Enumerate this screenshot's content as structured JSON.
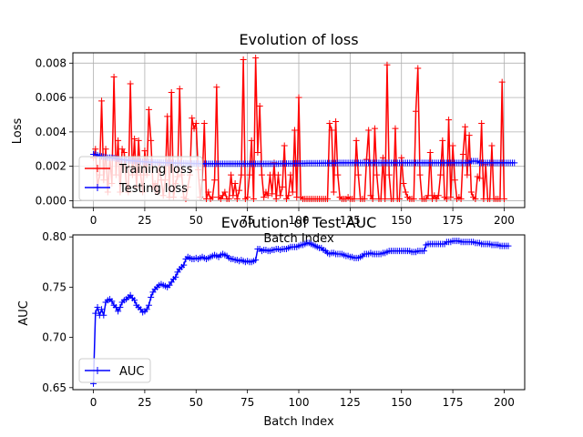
{
  "chart_data": [
    {
      "type": "line",
      "title": "Evolution of loss",
      "xlabel": "Batch Index",
      "ylabel": "Loss",
      "xlim": [
        -10,
        210
      ],
      "ylim": [
        -0.0004,
        0.0086
      ],
      "xticks": [
        0,
        25,
        50,
        75,
        100,
        125,
        150,
        175,
        200
      ],
      "yticks": [
        0.0,
        0.002,
        0.004,
        0.006,
        0.008
      ],
      "ytick_labels": [
        "0.000",
        "0.002",
        "0.004",
        "0.006",
        "0.008"
      ],
      "grid": true,
      "legend": "lower-left",
      "series": [
        {
          "name": "Training loss",
          "color": "#ff0000",
          "marker": "plus",
          "values": [
            0.0025,
            0.003,
            0.0008,
            0.0015,
            0.0058,
            0.0012,
            0.003,
            0.0005,
            0.0025,
            0.001,
            0.0072,
            0.0015,
            0.0035,
            0.0005,
            0.003,
            0.0028,
            0.001,
            0.0005,
            0.0068,
            0.0015,
            0.0036,
            0.0008,
            0.0035,
            0.0015,
            0.0005,
            0.0029,
            0.0015,
            0.0053,
            0.0035,
            0.0008,
            0.001,
            0.0005,
            0.0022,
            0.0012,
            0.0003,
            0.0012,
            0.0049,
            0.0002,
            0.0063,
            0.0002,
            0.001,
            0.0014,
            0.0065,
            0.0015,
            0.0002,
            0.0001,
            0.0008,
            0.0015,
            0.0048,
            0.0042,
            0.0045,
            0.0018,
            0.0002,
            0.0012,
            0.0045,
            0.0001,
            0.0005,
            0.0001,
            0.0002,
            0.0012,
            0.0066,
            0.0002,
            0.0001,
            0.0003,
            0.0005,
            0.0001,
            0.0001,
            0.0015,
            0.0003,
            0.001,
            0.0001,
            0.0006,
            0.0015,
            0.0082,
            0.0001,
            0.0002,
            0.0015,
            0.0035,
            0.0001,
            0.0083,
            0.0028,
            0.0055,
            0.0015,
            0.0002,
            0.0005,
            0.0003,
            0.0015,
            0.0004,
            0.0022,
            0.0001,
            0.0015,
            0.0003,
            0.0008,
            0.0032,
            0.0001,
            0.0003,
            0.0015,
            0.0005,
            0.0041,
            0.0002,
            0.006,
            0.0002,
            0.0001,
            0.0001,
            0.0001,
            0.0001,
            0.0001,
            0.0001,
            0.0001,
            0.0001,
            0.0001,
            0.0001,
            0.0001,
            0.0001,
            0.0001,
            0.0045,
            0.0041,
            0.0005,
            0.0046,
            0.0015,
            0.0002,
            0.0001,
            0.0001,
            0.0001,
            0.0002,
            0.0001,
            0.0001,
            0.0001,
            0.0035,
            0.0015,
            0.0001,
            0.0001,
            0.0001,
            0.0024,
            0.0041,
            0.0003,
            0.0001,
            0.0042,
            0.0015,
            0.0001,
            0.0001,
            0.0025,
            0.0001,
            0.0079,
            0.0015,
            0.0001,
            0.0001,
            0.0042,
            0.0001,
            0.0001,
            0.0025,
            0.001,
            0.0005,
            0.0002,
            0.0001,
            0.0001,
            0.0001,
            0.0052,
            0.0077,
            0.0015,
            0.0001,
            0.0001,
            0.0001,
            0.0003,
            0.0028,
            0.0001,
            0.0003,
            0.0001,
            0.0003,
            0.0015,
            0.0035,
            0.0002,
            0.0001,
            0.0047,
            0.0002,
            0.0032,
            0.0012,
            0.0001,
            0.0002,
            0.0001,
            0.0027,
            0.0043,
            0.0015,
            0.0038,
            0.0005,
            0.0002,
            0.0001,
            0.0014,
            0.0013,
            0.0045,
            0.0001,
            0.0021,
            0.0001,
            0.0001,
            0.0032,
            0.0001,
            0.0001,
            0.0001,
            0.0001,
            0.0069,
            0.0001
          ]
        },
        {
          "name": "Testing loss",
          "color": "#0000ff",
          "marker": "plus",
          "values": [
            0.0027,
            0.0027,
            0.00265,
            0.0026,
            0.00258,
            0.00255,
            0.00253,
            0.0025,
            0.0025,
            0.0025,
            0.00248,
            0.00245,
            0.00243,
            0.0024,
            0.0024,
            0.00238,
            0.00236,
            0.00235,
            0.00233,
            0.00232,
            0.0023,
            0.0023,
            0.0023,
            0.00228,
            0.00227,
            0.00226,
            0.00225,
            0.00225,
            0.00224,
            0.00224,
            0.00223,
            0.00223,
            0.00222,
            0.00222,
            0.00221,
            0.00221,
            0.0022,
            0.0022,
            0.0022,
            0.0022,
            0.00219,
            0.00219,
            0.00219,
            0.00218,
            0.00218,
            0.00218,
            0.00217,
            0.00217,
            0.00217,
            0.00216,
            0.00216,
            0.00216,
            0.00215,
            0.00215,
            0.00215,
            0.00215,
            0.00215,
            0.00215,
            0.00215,
            0.00215,
            0.00215,
            0.00215,
            0.00215,
            0.00215,
            0.00215,
            0.00215,
            0.00215,
            0.00215,
            0.00215,
            0.00215,
            0.00215,
            0.00215,
            0.00215,
            0.00215,
            0.00215,
            0.00215,
            0.00215,
            0.00215,
            0.00215,
            0.00215,
            0.00215,
            0.00215,
            0.00215,
            0.00215,
            0.00215,
            0.00215,
            0.00215,
            0.00215,
            0.00215,
            0.00215,
            0.00215,
            0.00216,
            0.00216,
            0.00216,
            0.00216,
            0.00216,
            0.00216,
            0.00216,
            0.00217,
            0.00217,
            0.00217,
            0.00217,
            0.00217,
            0.00217,
            0.00218,
            0.00218,
            0.00218,
            0.00218,
            0.00218,
            0.00218,
            0.00218,
            0.00219,
            0.00219,
            0.00219,
            0.00219,
            0.00219,
            0.00219,
            0.00219,
            0.00219,
            0.0022,
            0.0022,
            0.0022,
            0.0022,
            0.0022,
            0.0022,
            0.0022,
            0.0022,
            0.0022,
            0.0022,
            0.0022,
            0.0022,
            0.0022,
            0.0022,
            0.0022,
            0.0022,
            0.0022,
            0.0022,
            0.0022,
            0.0022,
            0.0022,
            0.0022,
            0.0022,
            0.0022,
            0.0022,
            0.0022,
            0.0022,
            0.0022,
            0.0022,
            0.0022,
            0.0022,
            0.0022,
            0.0022,
            0.0022,
            0.0022,
            0.0022,
            0.0022,
            0.0022,
            0.0022,
            0.0022,
            0.0022,
            0.0022,
            0.0022,
            0.0022,
            0.0022,
            0.0022,
            0.0022,
            0.0022,
            0.0022,
            0.0022,
            0.0022,
            0.0022,
            0.0022,
            0.0022,
            0.0022,
            0.0022,
            0.0022,
            0.0022,
            0.0022,
            0.0022,
            0.0022,
            0.0022,
            0.0022,
            0.0022,
            0.0022,
            0.0023,
            0.0023,
            0.0023,
            0.0023,
            0.0022,
            0.0022,
            0.0022,
            0.0022,
            0.0022,
            0.0022,
            0.0022,
            0.0022,
            0.0022,
            0.0022,
            0.0022,
            0.0022,
            0.0022,
            0.0022,
            0.0022,
            0.0022,
            0.0022,
            0.0022
          ]
        }
      ]
    },
    {
      "type": "line",
      "title": "Evolution of Test AUC",
      "xlabel": "Batch Index",
      "ylabel": "AUC",
      "xlim": [
        -10,
        210
      ],
      "ylim": [
        0.648,
        0.802
      ],
      "xticks": [
        0,
        25,
        50,
        75,
        100,
        125,
        150,
        175,
        200
      ],
      "yticks": [
        0.65,
        0.7,
        0.75,
        0.8
      ],
      "ytick_labels": [
        "0.65",
        "0.70",
        "0.75",
        "0.80"
      ],
      "grid": false,
      "legend": "lower-left",
      "series": [
        {
          "name": "AUC",
          "color": "#0000ff",
          "marker": "plus",
          "values": [
            0.654,
            0.724,
            0.73,
            0.722,
            0.728,
            0.722,
            0.735,
            0.737,
            0.738,
            0.736,
            0.732,
            0.73,
            0.726,
            0.73,
            0.735,
            0.737,
            0.738,
            0.74,
            0.742,
            0.739,
            0.737,
            0.732,
            0.73,
            0.728,
            0.725,
            0.726,
            0.728,
            0.732,
            0.74,
            0.745,
            0.748,
            0.75,
            0.752,
            0.753,
            0.752,
            0.751,
            0.75,
            0.752,
            0.755,
            0.758,
            0.76,
            0.765,
            0.768,
            0.77,
            0.772,
            0.778,
            0.78,
            0.779,
            0.778,
            0.778,
            0.779,
            0.778,
            0.779,
            0.78,
            0.779,
            0.778,
            0.779,
            0.78,
            0.781,
            0.782,
            0.781,
            0.78,
            0.782,
            0.783,
            0.782,
            0.781,
            0.779,
            0.778,
            0.778,
            0.777,
            0.777,
            0.776,
            0.777,
            0.776,
            0.775,
            0.776,
            0.775,
            0.775,
            0.776,
            0.777,
            0.788,
            0.788,
            0.786,
            0.787,
            0.787,
            0.786,
            0.786,
            0.787,
            0.787,
            0.788,
            0.788,
            0.787,
            0.788,
            0.788,
            0.788,
            0.789,
            0.79,
            0.79,
            0.79,
            0.79,
            0.791,
            0.792,
            0.792,
            0.793,
            0.794,
            0.794,
            0.793,
            0.792,
            0.791,
            0.79,
            0.789,
            0.789,
            0.787,
            0.786,
            0.784,
            0.783,
            0.784,
            0.784,
            0.783,
            0.783,
            0.783,
            0.783,
            0.782,
            0.781,
            0.781,
            0.78,
            0.78,
            0.779,
            0.779,
            0.779,
            0.78,
            0.781,
            0.783,
            0.783,
            0.783,
            0.784,
            0.783,
            0.783,
            0.783,
            0.783,
            0.783,
            0.784,
            0.784,
            0.785,
            0.786,
            0.786,
            0.786,
            0.786,
            0.786,
            0.786,
            0.786,
            0.786,
            0.786,
            0.786,
            0.786,
            0.785,
            0.785,
            0.785,
            0.786,
            0.786,
            0.786,
            0.786,
            0.792,
            0.793,
            0.793,
            0.793,
            0.793,
            0.793,
            0.793,
            0.793,
            0.793,
            0.793,
            0.795,
            0.795,
            0.795,
            0.796,
            0.796,
            0.796,
            0.796,
            0.795,
            0.795,
            0.795,
            0.795,
            0.795,
            0.795,
            0.795,
            0.794,
            0.794,
            0.794,
            0.793,
            0.793,
            0.793,
            0.793,
            0.793,
            0.792,
            0.792,
            0.792,
            0.792,
            0.791,
            0.791,
            0.791,
            0.791,
            0.791
          ]
        }
      ]
    }
  ]
}
